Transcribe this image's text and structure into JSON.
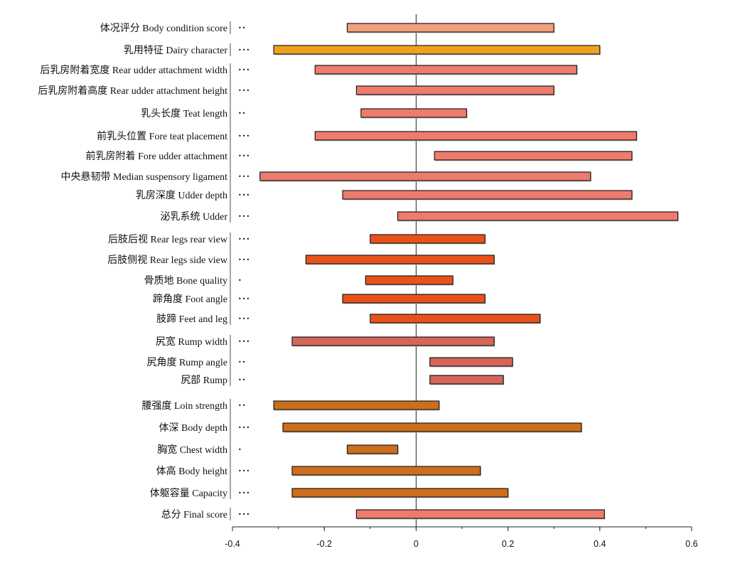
{
  "chart_data": {
    "type": "bar",
    "orientation": "horizontal-floating",
    "title": "",
    "xlabel": "",
    "ylabel": "",
    "xlim": [
      -0.4,
      0.6
    ],
    "xticks": [
      -0.4,
      -0.2,
      0,
      0.2,
      0.4,
      0.6
    ],
    "xtick_labels": [
      "-0.4",
      "-0.2",
      "0",
      "0.2",
      "0.4",
      "0.6"
    ],
    "groups": [
      {
        "color": "#f0a078",
        "rows": [
          {
            "label": "体况评分 Body condition score",
            "sig": "••",
            "start": -0.15,
            "end": 0.3
          }
        ]
      },
      {
        "color": "#f0a020",
        "rows": [
          {
            "label": "乳用特征 Dairy character",
            "sig": "•••",
            "start": -0.31,
            "end": 0.4
          }
        ]
      },
      {
        "color": "#ee7b6c",
        "rows": [
          {
            "label": "后乳房附着宽度 Rear udder attachment width",
            "sig": "•••",
            "start": -0.22,
            "end": 0.35
          },
          {
            "label": "后乳房附着高度 Rear udder attachment height",
            "sig": "•••",
            "start": -0.13,
            "end": 0.3
          },
          {
            "label": "乳头长度 Teat length",
            "sig": "••",
            "start": -0.12,
            "end": 0.11
          },
          {
            "label": "前乳头位置 Fore teat placement",
            "sig": "•••",
            "start": -0.22,
            "end": 0.48
          },
          {
            "label": "前乳房附着 Fore udder attachment",
            "sig": "•••",
            "start": 0.04,
            "end": 0.47
          },
          {
            "label": "中央悬韧带 Median suspensory ligament",
            "sig": "•••",
            "start": -0.34,
            "end": 0.38
          },
          {
            "label": "乳房深度 Udder depth",
            "sig": "•••",
            "start": -0.16,
            "end": 0.47
          },
          {
            "label": "泌乳系统 Udder",
            "sig": "•••",
            "start": -0.04,
            "end": 0.57
          }
        ]
      },
      {
        "color": "#e8521a",
        "rows": [
          {
            "label": "后肢后视 Rear legs rear view",
            "sig": "•••",
            "start": -0.1,
            "end": 0.15
          },
          {
            "label": "后肢侧视 Rear legs side view",
            "sig": "•••",
            "start": -0.24,
            "end": 0.17
          },
          {
            "label": "骨质地 Bone quality",
            "sig": "•",
            "start": -0.11,
            "end": 0.08
          },
          {
            "label": "蹄角度 Foot angle",
            "sig": "•••",
            "start": -0.16,
            "end": 0.15
          },
          {
            "label": "肢蹄 Feet and leg",
            "sig": "•••",
            "start": -0.1,
            "end": 0.27
          }
        ]
      },
      {
        "color": "#d4665a",
        "rows": [
          {
            "label": "尻宽 Rump width",
            "sig": "•••",
            "start": -0.27,
            "end": 0.17
          },
          {
            "label": "尻角度 Rump angle",
            "sig": "••",
            "start": 0.03,
            "end": 0.21
          },
          {
            "label": "尻部 Rump",
            "sig": "••",
            "start": 0.03,
            "end": 0.19
          }
        ]
      },
      {
        "color": "#cc6e1c",
        "rows": [
          {
            "label": "腰强度 Loin strength",
            "sig": "••",
            "start": -0.31,
            "end": 0.05
          },
          {
            "label": "体深 Body depth",
            "sig": "•••",
            "start": -0.29,
            "end": 0.36
          },
          {
            "label": "胸宽 Chest width",
            "sig": "•",
            "start": -0.15,
            "end": -0.04
          },
          {
            "label": "体高 Body height",
            "sig": "•••",
            "start": -0.27,
            "end": 0.14
          },
          {
            "label": "体躯容量 Capacity",
            "sig": "•••",
            "start": -0.27,
            "end": 0.2
          }
        ]
      },
      {
        "color": "#ee7b6c",
        "rows": [
          {
            "label": "总分 Final score",
            "sig": "•••",
            "start": -0.13,
            "end": 0.41
          }
        ]
      }
    ]
  }
}
